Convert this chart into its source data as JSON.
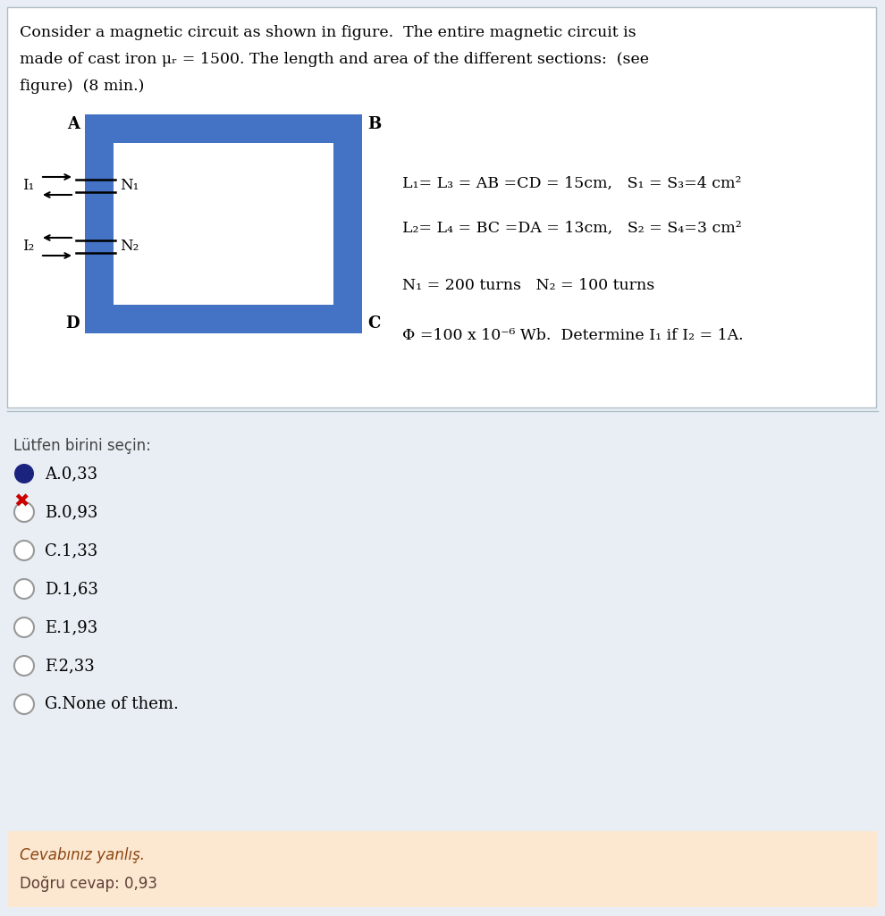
{
  "bg_color": "#e8eef4",
  "question_bg": "#ffffff",
  "question_text_line1": "Consider a magnetic circuit as shown in figure.  The entire magnetic circuit is",
  "question_text_line2": "made of cast iron μᵣ = 1500. The length and area of the different sections:  (see",
  "question_text_line3": "figure)  (8 min.)",
  "corner_A": "A",
  "corner_B": "B",
  "corner_C": "C",
  "corner_D": "D",
  "label_N1": "N₁",
  "label_N2": "N₂",
  "label_I1": "I₁",
  "label_I2": "I₂",
  "eq1": "L₁= L₃ = AB =CD = 15cm,   S₁ = S₃=4 cm²",
  "eq2": "L₂= L₄ = BC =DA = 13cm,   S₂ = S₄=3 cm²",
  "eq3": "N₁ = 200 turns   N₂ = 100 turns",
  "eq4": "Φ =100 x 10⁻⁶ Wb.  Determine I₁ if I₂ = 1A.",
  "rect_outer_color": "#4472c4",
  "rect_inner_color": "#ffffff",
  "options_label": "Lütfen birini seçin:",
  "options": [
    "A.0,33",
    "B.0,93",
    "C.1,33",
    "D.1,63",
    "E.1,93",
    "F.2,33",
    "G.None of them."
  ],
  "selected_option_color": "#1a237e",
  "wrong_marker": "✖",
  "feedback_bg": "#fce8d0",
  "feedback_line1": "Cevabınız yanlış.",
  "feedback_line2": "Doğru cevap: 0,93"
}
